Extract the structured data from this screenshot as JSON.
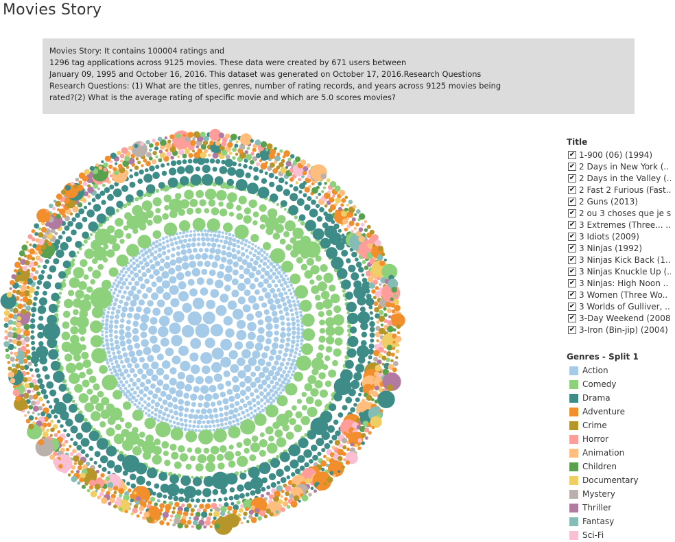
{
  "page": {
    "title": "Movies Story",
    "description_lines": [
      "Movies Story: It contains 100004 ratings and",
      "1296 tag applications across 9125 movies. These data were created by 671 users between",
      "January 09, 1995 and October 16, 2016. This dataset was generated on October 17, 2016.Research Questions",
      "Research Questions: (1) What are the titles, genres, number of rating records, and years across 9125 movies being",
      "rated?(2) What is the average rating of specific movie and which are 5.0 scores movies?"
    ]
  },
  "title_filter": {
    "heading": "Title",
    "check_glyph": "✔",
    "items": [
      "1-900 (06) (1994)",
      "2 Days in New York (..",
      "2 Days in the Valley (..",
      "2 Fast 2 Furious (Fast..",
      "2 Guns (2013)",
      "2 ou 3 choses que je s..",
      "3 Extremes (Three... ..",
      "3 Idiots (2009)",
      "3 Ninjas (1992)",
      "3 Ninjas Kick Back (1..",
      "3 Ninjas Knuckle Up (..",
      "3 Ninjas: High Noon ..",
      "3 Women (Three Wo..",
      "3 Worlds of Gulliver, ..",
      "3-Day Weekend (2008)",
      "3-Iron (Bin-jip) (2004)"
    ]
  },
  "chart_data": {
    "type": "packed-bubble",
    "legend_title": "Genres - Split 1",
    "legend_position": "right",
    "series": [
      {
        "name": "Action",
        "color": "#a6cbe8"
      },
      {
        "name": "Comedy",
        "color": "#8ed17d"
      },
      {
        "name": "Drama",
        "color": "#3e8c88"
      },
      {
        "name": "Adventure",
        "color": "#f28e2b"
      },
      {
        "name": "Crime",
        "color": "#b6962a"
      },
      {
        "name": "Horror",
        "color": "#ff9d9a"
      },
      {
        "name": "Animation",
        "color": "#ffbe7d"
      },
      {
        "name": "Children",
        "color": "#59a14f"
      },
      {
        "name": "Documentary",
        "color": "#f1ce63"
      },
      {
        "name": "Mystery",
        "color": "#bab0ac"
      },
      {
        "name": "Thriller",
        "color": "#b07aa1"
      },
      {
        "name": "Fantasy",
        "color": "#86bcb6"
      },
      {
        "name": "Sci-Fi",
        "color": "#fabfd2"
      }
    ],
    "ring_order_inner_to_outer": [
      "Action",
      "Comedy",
      "Drama",
      "Adventure",
      "Crime",
      "Horror",
      "Animation",
      "Children",
      "Documentary",
      "Mystery",
      "Thriller",
      "Fantasy",
      "Sci-Fi"
    ]
  }
}
